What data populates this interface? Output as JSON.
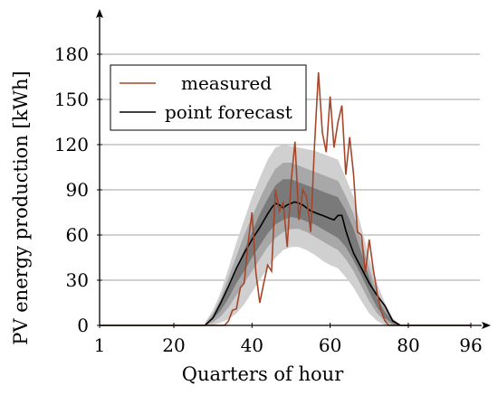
{
  "chart_data": {
    "type": "line",
    "xlabel": "Quarters of hour",
    "ylabel": "PV energy production [kWh]",
    "xlim": [
      1,
      96
    ],
    "ylim": [
      0,
      180
    ],
    "xticks": [
      1,
      20,
      40,
      60,
      80,
      96
    ],
    "yticks": [
      0,
      30,
      60,
      90,
      120,
      150,
      180
    ],
    "grid": "horizontal",
    "legend_position": "top-left",
    "colors": {
      "measured": "#a5462a",
      "forecast": "#000000",
      "band_outer": "#d0d0d0",
      "band_mid": "#a8a8a8",
      "band_inner": "#7a7a7a",
      "grid": "#a0a0a0"
    },
    "series": [
      {
        "name": "measured",
        "x": [
          1,
          33,
          34,
          35,
          36,
          37,
          38,
          39,
          40,
          41,
          42,
          43,
          44,
          45,
          46,
          47,
          48,
          49,
          50,
          51,
          52,
          53,
          54,
          55,
          56,
          57,
          58,
          59,
          60,
          61,
          62,
          63,
          64,
          65,
          66,
          67,
          68,
          69,
          70,
          71,
          72,
          73,
          74,
          75,
          96
        ],
        "y": [
          0,
          0,
          3,
          10,
          11,
          25,
          28,
          55,
          75,
          35,
          15,
          28,
          40,
          36,
          90,
          76,
          82,
          52,
          95,
          122,
          70,
          90,
          85,
          62,
          120,
          168,
          128,
          115,
          152,
          118,
          135,
          146,
          100,
          125,
          100,
          62,
          60,
          35,
          57,
          38,
          22,
          10,
          3,
          0,
          0
        ]
      },
      {
        "name": "point forecast",
        "x": [
          1,
          28,
          30,
          32,
          34,
          36,
          38,
          40,
          42,
          44,
          45,
          46,
          47,
          48,
          49,
          50,
          51,
          52,
          53,
          54,
          55,
          56,
          57,
          58,
          59,
          60,
          61,
          62,
          63,
          64,
          65,
          66,
          68,
          70,
          72,
          74,
          75,
          76,
          78,
          96
        ],
        "y": [
          0,
          0,
          5,
          15,
          26,
          38,
          48,
          57,
          65,
          74,
          78,
          81,
          80,
          78,
          80,
          81,
          82,
          81,
          80,
          78,
          76,
          75,
          74,
          73,
          72,
          71,
          70,
          73,
          73,
          63,
          55,
          48,
          38,
          28,
          20,
          13,
          8,
          3,
          0,
          0
        ]
      }
    ],
    "bands": {
      "x": [
        28,
        30,
        32,
        34,
        36,
        38,
        40,
        42,
        44,
        46,
        48,
        50,
        52,
        54,
        56,
        58,
        60,
        62,
        64,
        66,
        68,
        70,
        72,
        74,
        76,
        78
      ],
      "outer_low": [
        0,
        0,
        2,
        4,
        8,
        14,
        22,
        30,
        38,
        45,
        50,
        52,
        52,
        50,
        47,
        43,
        40,
        38,
        32,
        25,
        16,
        8,
        3,
        0,
        0,
        0
      ],
      "outer_high": [
        2,
        10,
        22,
        38,
        55,
        70,
        85,
        98,
        110,
        118,
        120,
        119,
        118,
        117,
        116,
        114,
        112,
        110,
        98,
        85,
        65,
        45,
        28,
        15,
        5,
        0
      ],
      "mid_low": [
        0,
        2,
        6,
        12,
        20,
        28,
        36,
        44,
        52,
        58,
        62,
        64,
        64,
        62,
        59,
        56,
        53,
        50,
        44,
        36,
        26,
        16,
        8,
        3,
        0,
        0
      ],
      "mid_high": [
        1,
        8,
        18,
        32,
        46,
        60,
        72,
        84,
        95,
        104,
        108,
        108,
        106,
        104,
        102,
        100,
        98,
        96,
        86,
        74,
        56,
        38,
        22,
        12,
        4,
        0
      ],
      "inner_low": [
        0,
        4,
        10,
        18,
        28,
        36,
        45,
        53,
        61,
        67,
        70,
        72,
        71,
        69,
        67,
        64,
        61,
        58,
        52,
        43,
        33,
        22,
        12,
        5,
        1,
        0
      ],
      "inner_high": [
        0,
        6,
        14,
        26,
        38,
        50,
        62,
        74,
        84,
        93,
        97,
        97,
        95,
        93,
        91,
        89,
        87,
        85,
        76,
        64,
        48,
        32,
        18,
        9,
        3,
        0
      ]
    }
  }
}
